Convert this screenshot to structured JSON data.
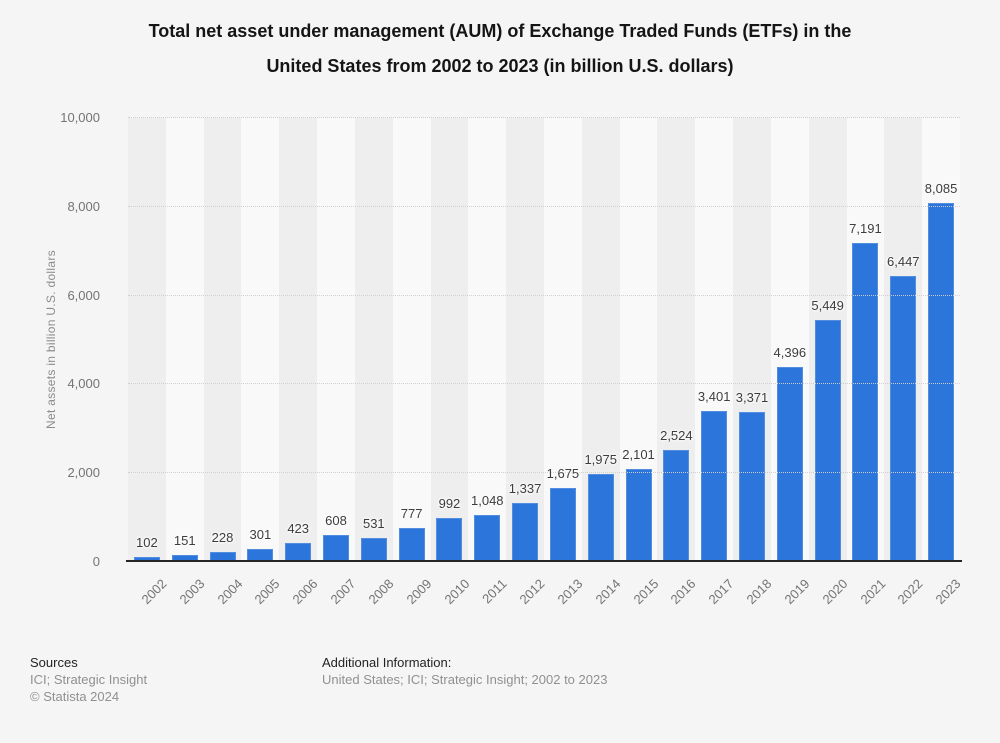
{
  "title_lines": [
    "Total net asset under management (AUM) of Exchange Traded Funds (ETFs) in the",
    "United States from 2002 to 2023 (in billion U.S. dollars)"
  ],
  "chart_data": {
    "type": "bar",
    "title": "Total net asset under management (AUM) of Exchange Traded Funds (ETFs) in the United States from 2002 to 2023 (in billion U.S. dollars)",
    "categories": [
      "2002",
      "2003",
      "2004",
      "2005",
      "2006",
      "2007",
      "2008",
      "2009",
      "2010",
      "2011",
      "2012",
      "2013",
      "2014",
      "2015",
      "2016",
      "2017",
      "2018",
      "2019",
      "2020",
      "2021",
      "2022",
      "2023"
    ],
    "values": [
      102,
      151,
      228,
      301,
      423,
      608,
      531,
      777,
      992,
      1048,
      1337,
      1675,
      1975,
      2101,
      2524,
      3401,
      3371,
      4396,
      5449,
      7191,
      6447,
      8085
    ],
    "value_labels": [
      "102",
      "151",
      "228",
      "301",
      "423",
      "608",
      "531",
      "777",
      "992",
      "1,048",
      "1,337",
      "1,675",
      "1,975",
      "2,101",
      "2,524",
      "3,401",
      "3,371",
      "4,396",
      "5,449",
      "7,191",
      "6,447",
      "8,085"
    ],
    "xlabel": "",
    "ylabel": "Net assets in billion U.S. dollars",
    "ylim": [
      0,
      10000
    ],
    "yticks": [
      0,
      2000,
      4000,
      6000,
      8000,
      10000
    ],
    "ytick_labels": [
      "0",
      "2,000",
      "4,000",
      "6,000",
      "8,000",
      "10,000"
    ],
    "grid": "horizontal-dotted",
    "legend": "none",
    "bar_color": "#2c75da",
    "band_color_even": "#eeeeee",
    "band_color_odd": "#f9f9f9"
  },
  "footer": {
    "sources_heading": "Sources",
    "sources_line1": "ICI; Strategic Insight",
    "sources_line2": "© Statista 2024",
    "additional_heading": "Additional Information:",
    "additional_line1": "United States; ICI; Strategic Insight; 2002 to 2023"
  }
}
